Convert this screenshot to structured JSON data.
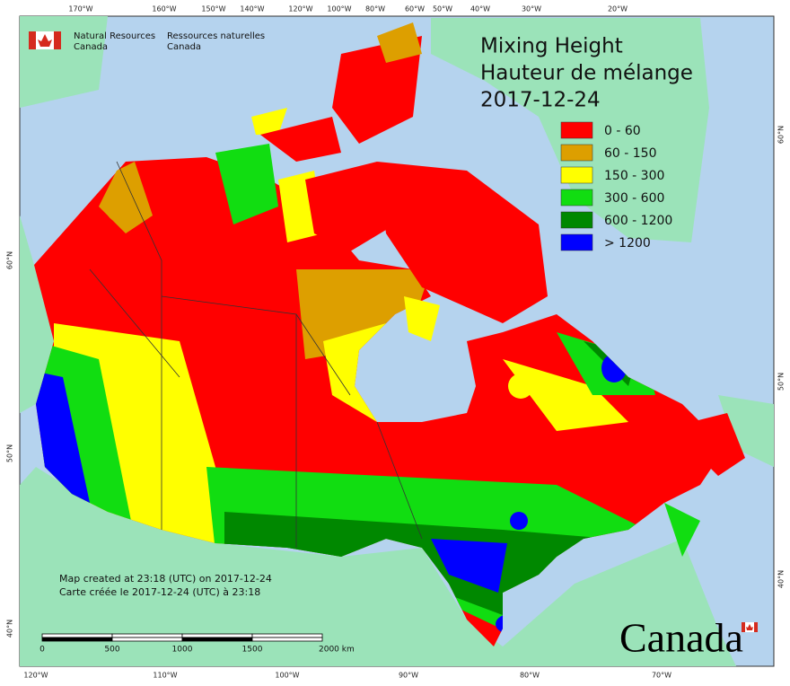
{
  "agency": {
    "en": [
      "Natural Resources",
      "Canada"
    ],
    "fr": [
      "Ressources naturelles",
      "Canada"
    ]
  },
  "title": {
    "en": "Mixing Height",
    "fr": "Hauteur de mélange",
    "date": "2017-12-24"
  },
  "legend": [
    {
      "label": "0 - 60",
      "color": "#ff0000"
    },
    {
      "label": "60 - 150",
      "color": "#dd9f00"
    },
    {
      "label": "150 - 300",
      "color": "#ffff00"
    },
    {
      "label": "300 - 600",
      "color": "#11dd11"
    },
    {
      "label": "600 - 1200",
      "color": "#008800"
    },
    {
      "label": "> 1200",
      "color": "#0000ff"
    }
  ],
  "graticule": {
    "top": [
      "170°W",
      "160°W",
      "150°W",
      "140°W",
      "120°W",
      "100°W",
      "80°W",
      "60°W",
      "50°W",
      "40°W",
      "30°W",
      "20°W"
    ],
    "bottom": [
      "120°W",
      "110°W",
      "100°W",
      "90°W",
      "80°W",
      "70°W"
    ],
    "left": [
      "60°N",
      "50°N",
      "40°N"
    ],
    "right": [
      "60°N",
      "50°N",
      "40°N"
    ]
  },
  "scale_bar": {
    "labels": [
      "0",
      "500",
      "1000",
      "1500",
      "2000 km"
    ]
  },
  "notes": [
    "Map created at 23:18 (UTC) on 2017-12-24",
    "Carte créée le 2017-12-24 (UTC) à 23:18"
  ],
  "wordmark": "Canada"
}
